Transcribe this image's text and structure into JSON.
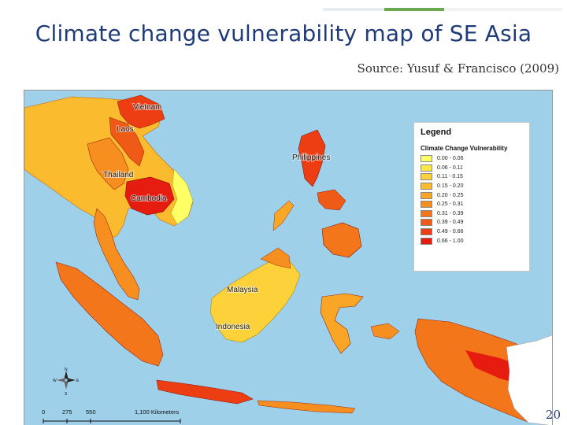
{
  "slide": {
    "title": "Climate change vulnerability map of SE Asia",
    "source": "Source: Yusuf & Francisco (2009)",
    "page_number": "20",
    "accent_colors": [
      "#e6ecf2",
      "#6aa84f",
      "#f2f2f2"
    ]
  },
  "map": {
    "sea_color": "#9ed0ea",
    "labels": {
      "vietnam": "Vietnam",
      "laos": "Laos",
      "thailand": "Thailand",
      "cambodia": "Cambodia",
      "philippines": "Philippines",
      "malaysia": "Malaysia",
      "indonesia": "Indonesia"
    },
    "legend": {
      "title": "Legend",
      "subtitle": "Climate Change Vulnerability",
      "classes": [
        {
          "label": "0.00 - 0.06",
          "color": "#ffff66"
        },
        {
          "label": "0.06 - 0.11",
          "color": "#fde64a"
        },
        {
          "label": "0.11 - 0.15",
          "color": "#fcd13a"
        },
        {
          "label": "0.15 - 0.20",
          "color": "#fbbb2e"
        },
        {
          "label": "0.20 - 0.25",
          "color": "#f9a526"
        },
        {
          "label": "0.25 - 0.31",
          "color": "#f78f20"
        },
        {
          "label": "0.31 - 0.39",
          "color": "#f4761b"
        },
        {
          "label": "0.39 - 0.49",
          "color": "#f05a17"
        },
        {
          "label": "0.49 - 0.66",
          "color": "#ec3d13"
        },
        {
          "label": "0.66 - 1.00",
          "color": "#e61c10"
        }
      ]
    },
    "scale_bar": {
      "ticks": [
        "0",
        "275",
        "550",
        "1,100 Kilometers"
      ]
    },
    "compass": {
      "n": "N",
      "s": "S",
      "e": "E",
      "w": "W"
    }
  }
}
